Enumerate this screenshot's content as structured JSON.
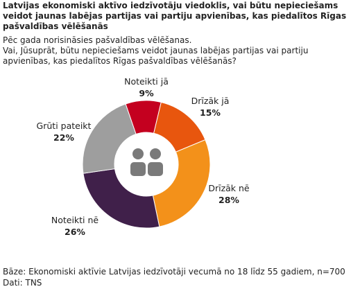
{
  "chart_data": {
    "type": "donut",
    "title": "Latvijas ekonomiski aktīvo iedzīvotāju viedoklis, vai būtu nepieciešams veidot jaunas labējas partijas vai partiju apvienības, kas piedalītos Rīgas pašvaldības vēlēšanās",
    "subtitle": "Pēc gada norisināsies pašvaldības vēlēšanas.",
    "question": "Vai, Jūsuprāt, būtu nepieciešams veidot jaunas labējas partijas vai partiju apvienības, kas piedalītos Rīgas pašvaldības vēlēšanās?",
    "categories": [
      "Noteikti jā",
      "Drīzāk jā",
      "Drīzāk nē",
      "Noteikti nē",
      "Grūti pateikt"
    ],
    "values": [
      9,
      15,
      28,
      26,
      22
    ],
    "value_labels": [
      "9%",
      "15%",
      "28%",
      "26%",
      "22%"
    ],
    "colors": [
      "#c4001f",
      "#e8560e",
      "#f3911a",
      "#40204a",
      "#9e9e9e"
    ],
    "footer": [
      "Bāze: Ekonomiski aktīvie Latvijas iedzīvotāji vecumā no 18 līdz 55 gadiem, n=700",
      "Dati: TNS"
    ]
  }
}
